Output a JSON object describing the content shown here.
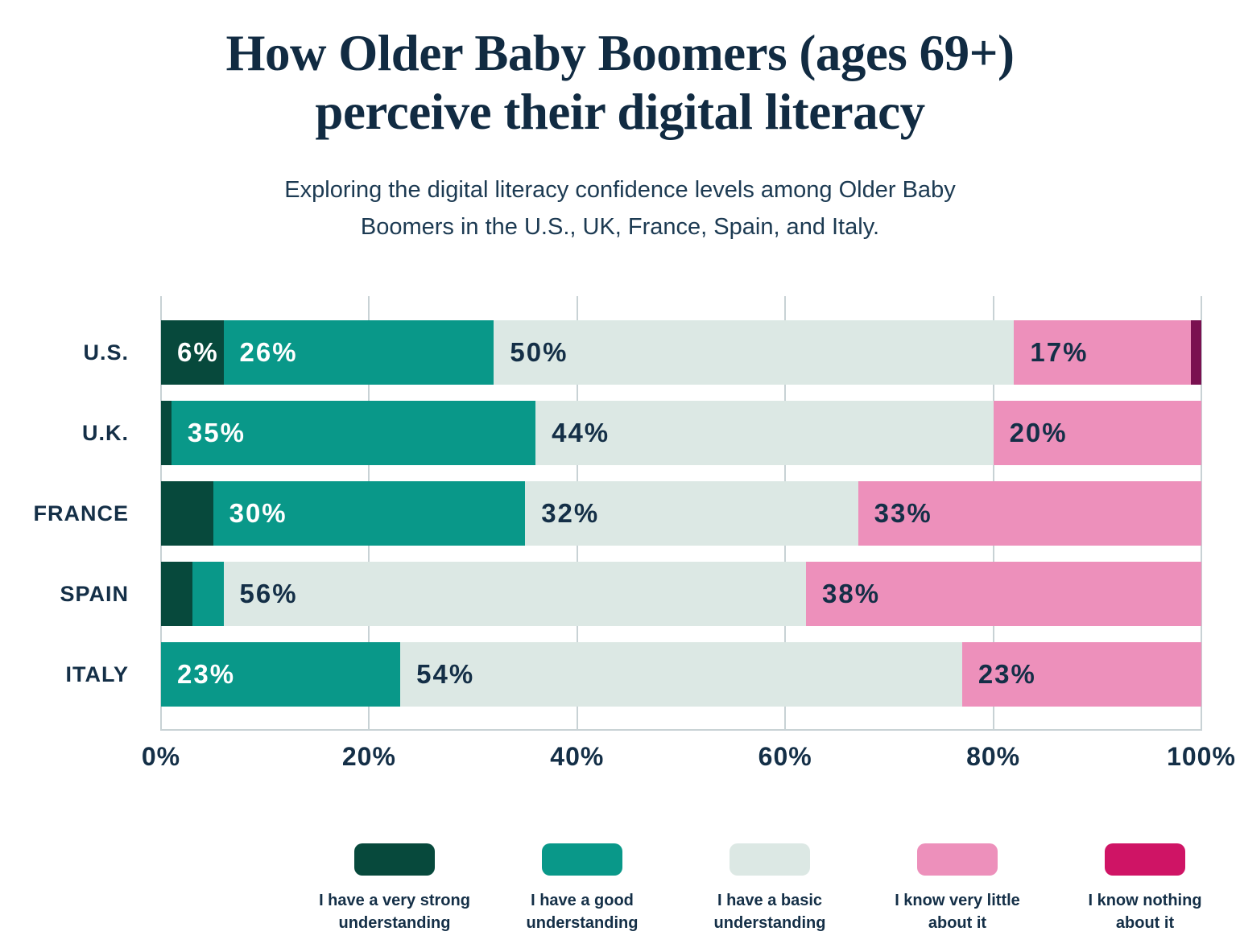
{
  "page": {
    "background": "#ffffff",
    "text_color": "#142f47",
    "gridline_color": "#c8d2d5"
  },
  "header": {
    "title": "How Older Baby Boomers (ages 69+) perceive their digital literacy",
    "title_lines": [
      "How Older Baby Boomers (ages 69+)",
      "perceive their digital literacy"
    ],
    "subtitle": "Exploring the digital literacy confidence levels among Older Baby Boomers in the U.S., UK, France, Spain, and Italy.",
    "subtitle_lines": [
      "Exploring the digital literacy confidence levels among Older Baby",
      "Boomers in the U.S., UK, France, Spain, and Italy."
    ]
  },
  "chart_data": {
    "type": "bar",
    "orientation": "horizontal",
    "stacked": true,
    "title": "How Older Baby Boomers (ages 69+) perceive their digital literacy",
    "categories": [
      "U.S.",
      "U.K.",
      "FRANCE",
      "SPAIN",
      "ITALY"
    ],
    "series": [
      {
        "name": "I have a very strong understanding",
        "color": "#07493c",
        "label_color": "#ffffff",
        "values": [
          6,
          1,
          5,
          3,
          0
        ]
      },
      {
        "name": "I have a good understanding",
        "color": "#099889",
        "label_color": "#ffffff",
        "values": [
          26,
          35,
          30,
          3,
          23
        ]
      },
      {
        "name": "I have a basic understanding",
        "color": "#dce8e4",
        "label_color": "#142f47",
        "values": [
          50,
          44,
          32,
          56,
          54
        ]
      },
      {
        "name": "I know very little about it",
        "color": "#ed90bb",
        "label_color": "#142f47",
        "values": [
          17,
          20,
          33,
          38,
          23
        ]
      },
      {
        "name": "I know nothing about it",
        "color": "#cf1465",
        "bar_color": "#7a1050",
        "label_color": "#ffffff",
        "values": [
          1,
          0,
          0,
          0,
          0
        ]
      }
    ],
    "visible_bar_labels": [
      [
        "6%",
        "26%",
        "50%",
        "17%",
        ""
      ],
      [
        "",
        "35%",
        "44%",
        "20%",
        ""
      ],
      [
        "",
        "30%",
        "32%",
        "33%",
        ""
      ],
      [
        "",
        "",
        "56%",
        "38%",
        ""
      ],
      [
        "",
        "23%",
        "54%",
        "23%",
        ""
      ]
    ],
    "value_suffix": "%",
    "label_min_value": 6,
    "xlim": [
      0,
      100
    ],
    "x_ticks": [
      0,
      20,
      40,
      60,
      80,
      100
    ],
    "x_tick_labels": [
      "0%",
      "20%",
      "40%",
      "60%",
      "80%",
      "100%"
    ],
    "grid": true,
    "legend_position": "bottom"
  },
  "legend": {
    "items": [
      {
        "label": "I have a very strong understanding",
        "label_lines": [
          "I have a very strong",
          "understanding"
        ],
        "color": "#07493c"
      },
      {
        "label": "I have a good understanding",
        "label_lines": [
          "I have a good",
          "understanding"
        ],
        "color": "#099889"
      },
      {
        "label": "I have a basic understanding",
        "label_lines": [
          "I have a basic",
          "understanding"
        ],
        "color": "#dce8e4"
      },
      {
        "label": "I know very little about it",
        "label_lines": [
          "I know very little",
          "about it"
        ],
        "color": "#ed90bb"
      },
      {
        "label": "I know nothing about it",
        "label_lines": [
          "I know nothing",
          "about it"
        ],
        "color": "#cf1465"
      }
    ]
  }
}
